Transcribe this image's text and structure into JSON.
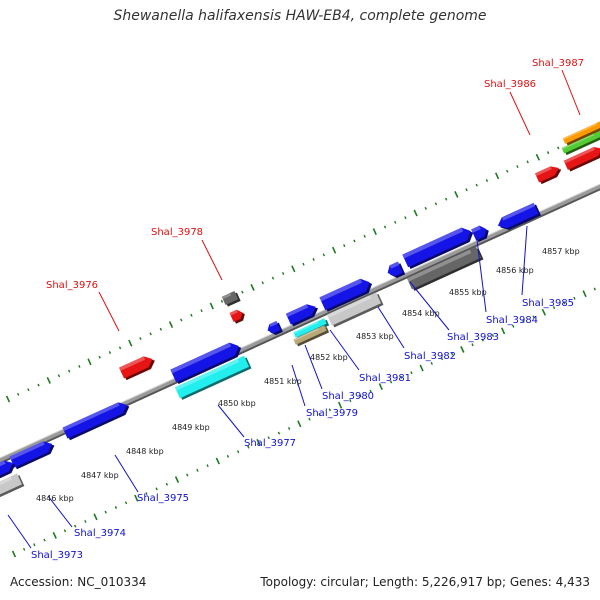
{
  "title": "Shewanella halifaxensis HAW-EB4, complete genome",
  "footer": {
    "accession": "Accession: NC_010334",
    "summary": "Topology: circular; Length: 5,226,917 bp; Genes: 4,433"
  },
  "colors": {
    "backbone": "#8a8a8a",
    "ticks": "#1e7a1e",
    "blue_gene": "#1414e6",
    "red_gene": "#e61414",
    "gray_gene": "#c8c8c8",
    "darkgray_gene": "#666666",
    "cyan_gene": "#22eeee",
    "orange_gene": "#ff9900",
    "green_gene": "#55cc33",
    "tan_gene": "#b8a878",
    "label_red": "#dd1111",
    "label_blue": "#1111cc"
  },
  "kbp_markers": [
    "4846 kbp",
    "4847 kbp",
    "4848 kbp",
    "4849 kbp",
    "4850 kbp",
    "4851 kbp",
    "4852 kbp",
    "4853 kbp",
    "4854 kbp",
    "4855 kbp",
    "4856 kbp",
    "4857 kbp"
  ],
  "labels_forward": [
    "Shal_3976",
    "Shal_3978",
    "Shal_3986",
    "Shal_3987"
  ],
  "labels_reverse": [
    "Shal_3973",
    "Shal_3974",
    "Shal_3975",
    "Shal_3977",
    "Shal_3979",
    "Shal_3980",
    "Shal_3981",
    "Shal_3982",
    "Shal_3983",
    "Shal_3984",
    "Shal_3985"
  ]
}
